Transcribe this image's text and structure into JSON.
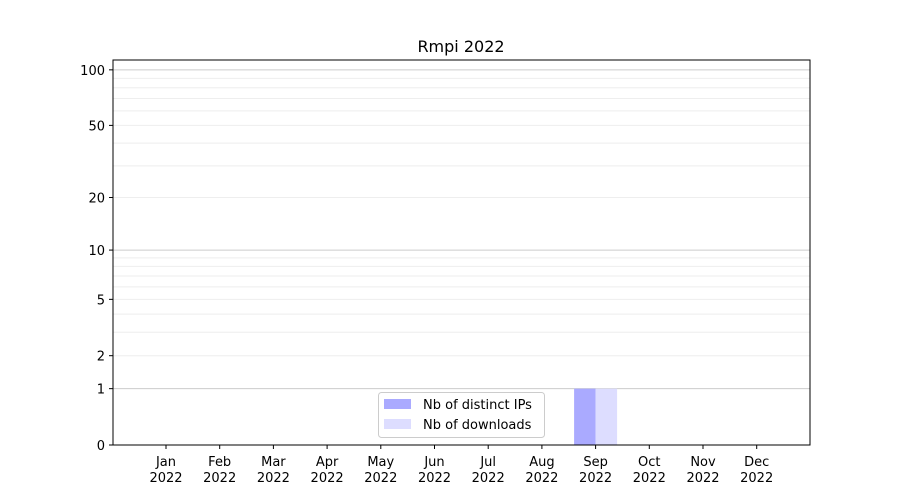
{
  "chart_data": {
    "type": "bar",
    "title": "Rmpi 2022",
    "xlabel": "",
    "ylabel": "",
    "categories": [
      "Jan\n2022",
      "Feb\n2022",
      "Mar\n2022",
      "Apr\n2022",
      "May\n2022",
      "Jun\n2022",
      "Jul\n2022",
      "Aug\n2022",
      "Sep\n2022",
      "Oct\n2022",
      "Nov\n2022",
      "Dec\n2022"
    ],
    "series": [
      {
        "name": "Nb of distinct IPs",
        "color": "#aaaaff",
        "values": [
          0,
          0,
          0,
          0,
          0,
          0,
          0,
          0,
          1,
          0,
          0,
          0
        ]
      },
      {
        "name": "Nb of downloads",
        "color": "#ddddff",
        "values": [
          0,
          0,
          0,
          0,
          0,
          0,
          0,
          0,
          1,
          0,
          0,
          0
        ]
      }
    ],
    "yscale": "log(1+y)",
    "yticks": [
      0,
      1,
      2,
      5,
      10,
      20,
      50,
      100
    ],
    "ylim": [
      0,
      113
    ],
    "grid": true,
    "legend": "bottom-center"
  }
}
